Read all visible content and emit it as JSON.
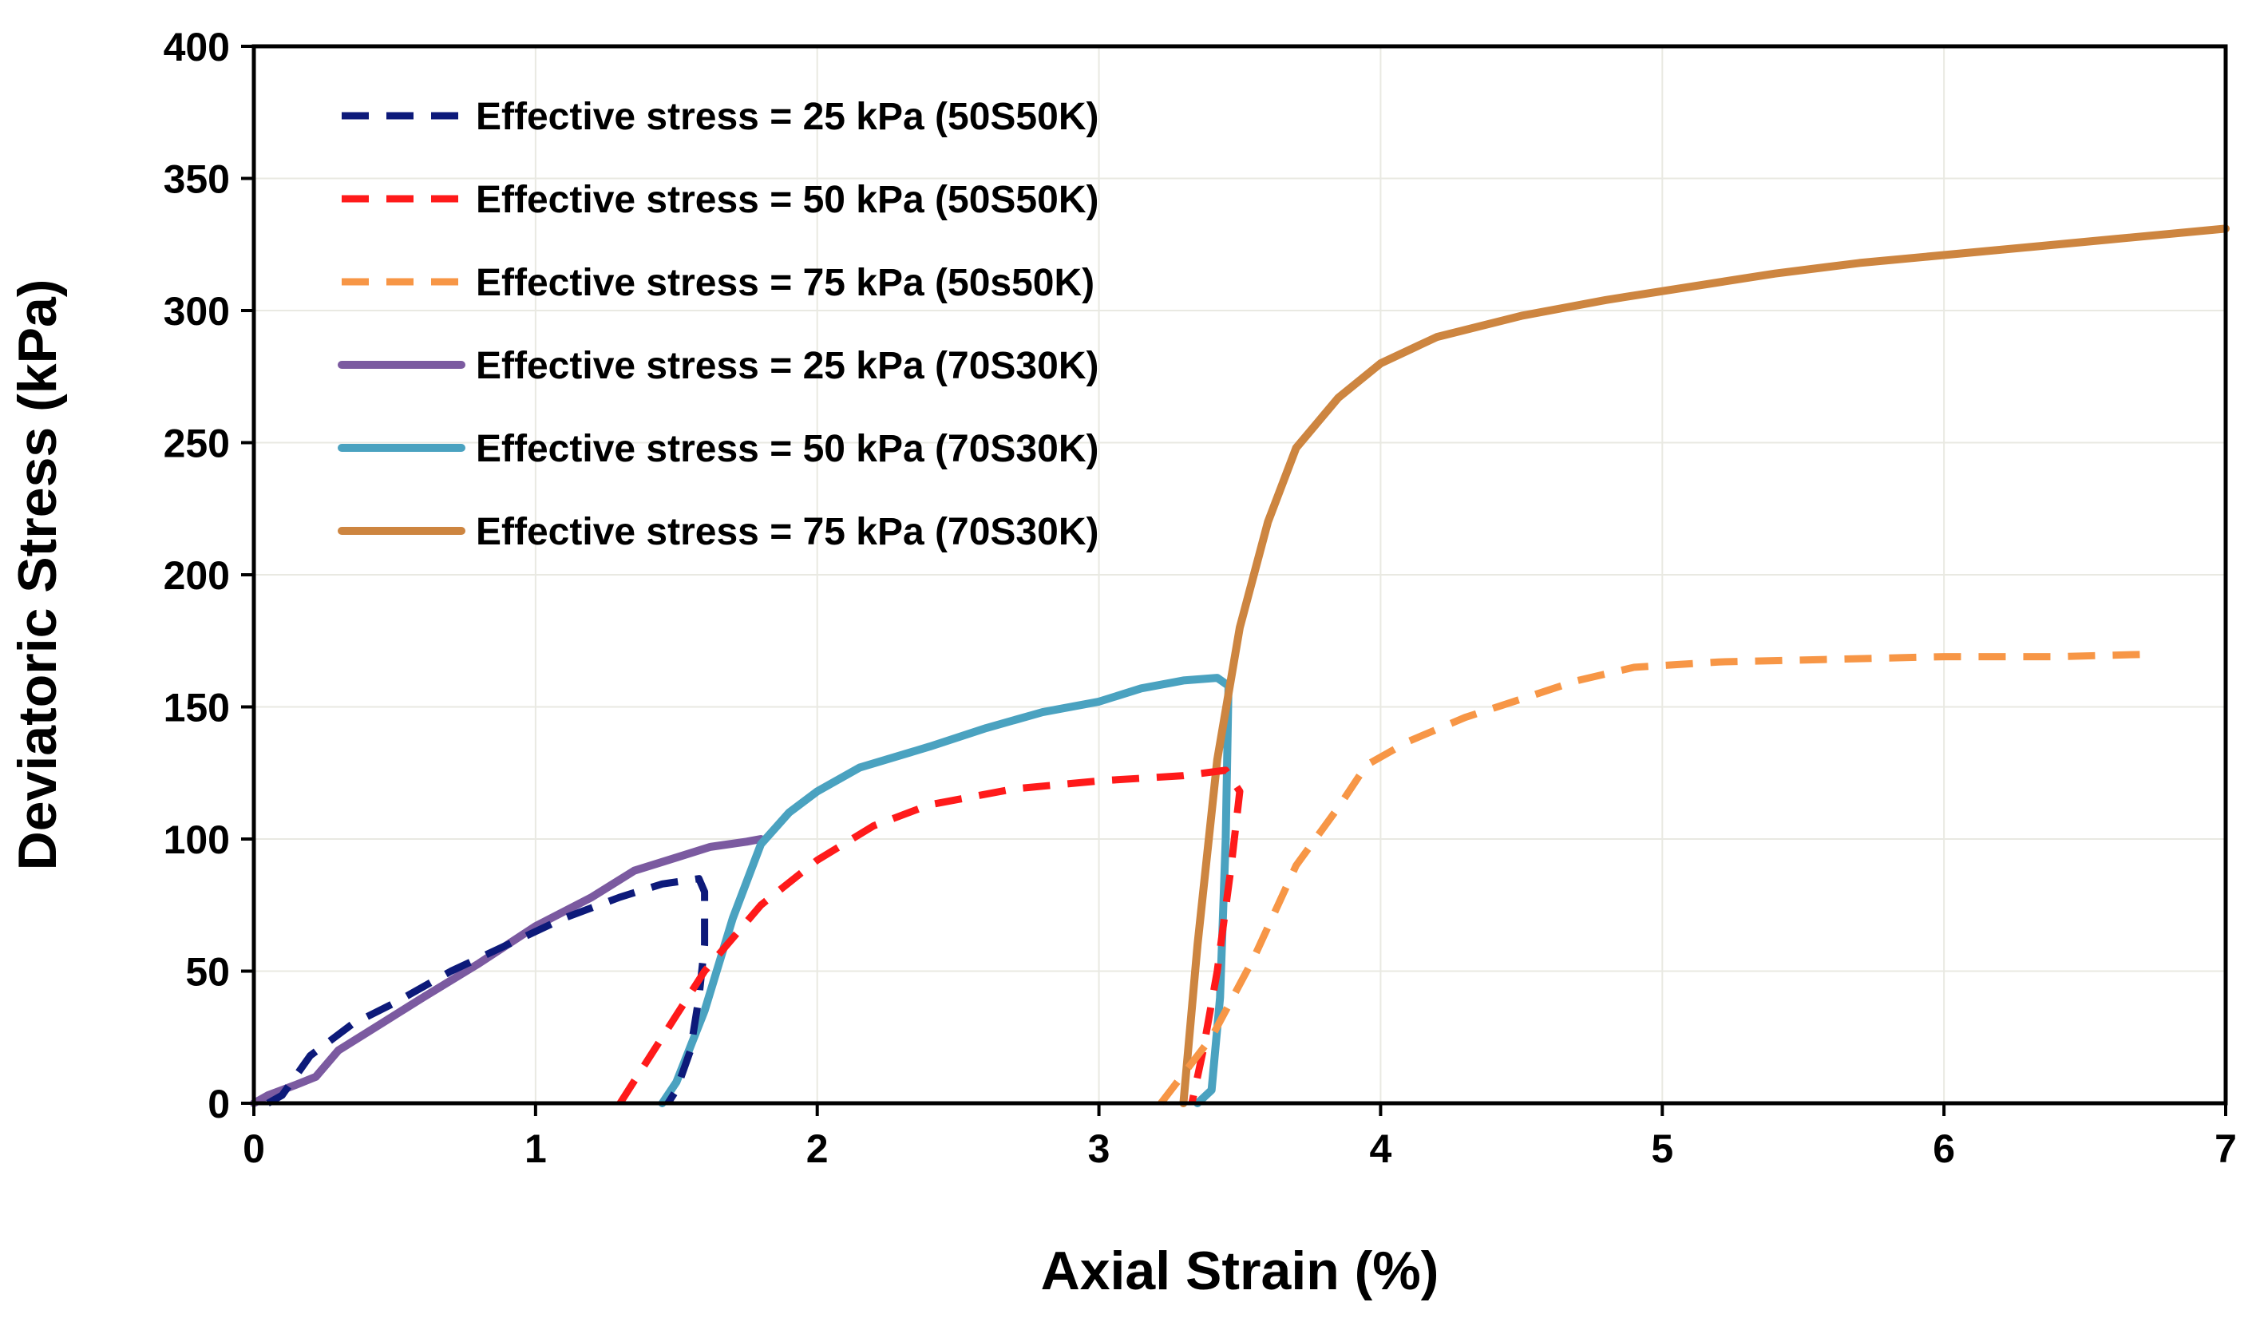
{
  "chart_data": {
    "type": "line",
    "title": "",
    "xlabel": "Axial Strain (%)",
    "ylabel": "Deviatoric Stress (kPa)",
    "xlim": [
      0,
      7
    ],
    "ylim": [
      0,
      400
    ],
    "xticks": [
      0,
      1,
      2,
      3,
      4,
      5,
      6,
      7
    ],
    "yticks": [
      0,
      50,
      100,
      150,
      200,
      250,
      300,
      350,
      400
    ],
    "grid": true,
    "legend_position": "top-left",
    "series": [
      {
        "name": "Effective stress = 25 kPa (50S50K)",
        "color": "#0d1a7a",
        "style": "dashed",
        "points": [
          [
            0.05,
            0
          ],
          [
            0.1,
            3
          ],
          [
            0.2,
            18
          ],
          [
            0.35,
            30
          ],
          [
            0.5,
            38
          ],
          [
            0.7,
            50
          ],
          [
            0.9,
            60
          ],
          [
            1.1,
            70
          ],
          [
            1.3,
            78
          ],
          [
            1.45,
            83
          ],
          [
            1.58,
            85
          ],
          [
            1.6,
            80
          ],
          [
            1.6,
            60
          ],
          [
            1.58,
            40
          ],
          [
            1.55,
            20
          ],
          [
            1.5,
            5
          ],
          [
            1.47,
            0
          ]
        ]
      },
      {
        "name": "Effective stress = 50 kPa (50S50K)",
        "color": "#ff1a1a",
        "style": "dashed",
        "points": [
          [
            1.3,
            0
          ],
          [
            1.45,
            25
          ],
          [
            1.6,
            50
          ],
          [
            1.8,
            75
          ],
          [
            2.0,
            92
          ],
          [
            2.2,
            105
          ],
          [
            2.4,
            113
          ],
          [
            2.7,
            119
          ],
          [
            3.0,
            122
          ],
          [
            3.3,
            124
          ],
          [
            3.45,
            126
          ],
          [
            3.5,
            118
          ],
          [
            3.47,
            90
          ],
          [
            3.42,
            50
          ],
          [
            3.37,
            20
          ],
          [
            3.33,
            0
          ]
        ]
      },
      {
        "name": "Effective stress = 75 kPa (50s50K)",
        "color": "#f79646",
        "style": "dashed",
        "points": [
          [
            3.22,
            0
          ],
          [
            3.4,
            25
          ],
          [
            3.55,
            55
          ],
          [
            3.7,
            90
          ],
          [
            3.85,
            112
          ],
          [
            3.95,
            128
          ],
          [
            4.1,
            137
          ],
          [
            4.3,
            146
          ],
          [
            4.5,
            153
          ],
          [
            4.7,
            160
          ],
          [
            4.9,
            165
          ],
          [
            5.2,
            167
          ],
          [
            5.6,
            168
          ],
          [
            6.0,
            169
          ],
          [
            6.4,
            169
          ],
          [
            6.75,
            170
          ]
        ]
      },
      {
        "name": "Effective stress = 25 kPa (70S30K)",
        "color": "#7b5aa0",
        "style": "solid",
        "points": [
          [
            0,
            0
          ],
          [
            0.05,
            3
          ],
          [
            0.15,
            7
          ],
          [
            0.22,
            10
          ],
          [
            0.3,
            20
          ],
          [
            0.45,
            30
          ],
          [
            0.6,
            40
          ],
          [
            0.8,
            53
          ],
          [
            1.0,
            67
          ],
          [
            1.2,
            78
          ],
          [
            1.35,
            88
          ],
          [
            1.5,
            93
          ],
          [
            1.62,
            97
          ],
          [
            1.75,
            99
          ],
          [
            1.8,
            100
          ]
        ]
      },
      {
        "name": "Effective stress = 50 kPa (70S30K)",
        "color": "#4aa2c0",
        "style": "solid",
        "points": [
          [
            1.45,
            0
          ],
          [
            1.5,
            8
          ],
          [
            1.6,
            35
          ],
          [
            1.7,
            70
          ],
          [
            1.8,
            98
          ],
          [
            1.9,
            110
          ],
          [
            2.0,
            118
          ],
          [
            2.15,
            127
          ],
          [
            2.4,
            135
          ],
          [
            2.6,
            142
          ],
          [
            2.8,
            148
          ],
          [
            3.0,
            152
          ],
          [
            3.15,
            157
          ],
          [
            3.3,
            160
          ],
          [
            3.42,
            161
          ],
          [
            3.46,
            158
          ],
          [
            3.45,
            100
          ],
          [
            3.43,
            40
          ],
          [
            3.4,
            5
          ],
          [
            3.35,
            0
          ]
        ]
      },
      {
        "name": "Effective stress = 75 kPa (70S30K)",
        "color": "#cd8540",
        "style": "solid",
        "points": [
          [
            3.3,
            0
          ],
          [
            3.35,
            60
          ],
          [
            3.42,
            130
          ],
          [
            3.5,
            180
          ],
          [
            3.6,
            220
          ],
          [
            3.7,
            248
          ],
          [
            3.85,
            267
          ],
          [
            4.0,
            280
          ],
          [
            4.2,
            290
          ],
          [
            4.5,
            298
          ],
          [
            4.8,
            304
          ],
          [
            5.1,
            309
          ],
          [
            5.4,
            314
          ],
          [
            5.7,
            318
          ],
          [
            6.0,
            321
          ],
          [
            6.3,
            324
          ],
          [
            6.6,
            327
          ],
          [
            7.0,
            331
          ]
        ]
      }
    ]
  }
}
